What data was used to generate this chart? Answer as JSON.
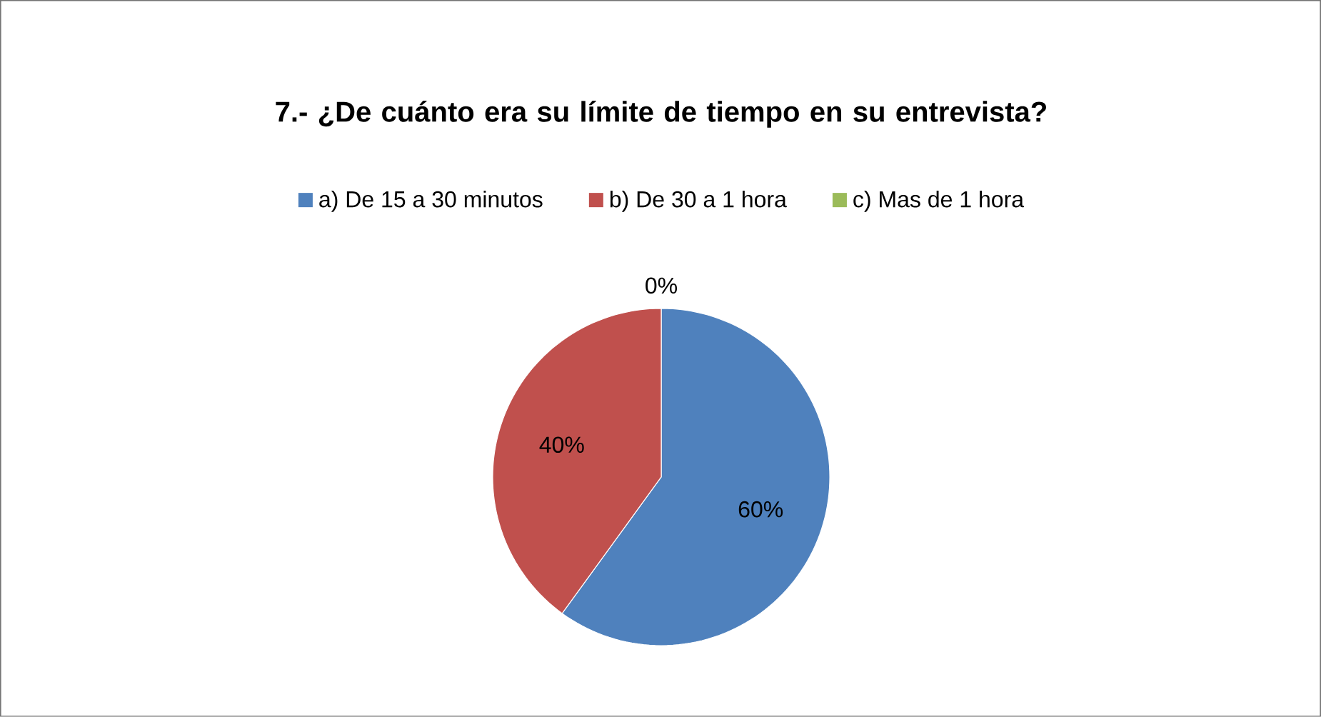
{
  "chart_data": {
    "type": "pie",
    "title": "7.- ¿De cuánto era su límite de tiempo en su entrevista?",
    "categories": [
      "a) De 15 a 30 minutos",
      "b) De 30 a 1 hora",
      "c) Mas de 1 hora"
    ],
    "values": [
      60,
      40,
      0
    ],
    "value_labels": [
      "60%",
      "40%",
      "0%"
    ],
    "colors": [
      "#4f81bd",
      "#c0504d",
      "#9bbb59"
    ],
    "legend": "top"
  }
}
